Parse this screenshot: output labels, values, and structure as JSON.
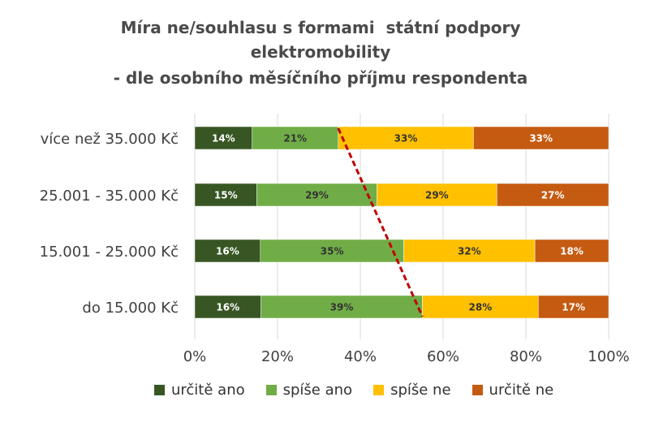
{
  "chart_data": {
    "type": "bar",
    "orientation": "horizontal",
    "stacked": true,
    "title_lines": [
      "Míra ne/souhlasu s formami  státní podpory",
      "elektromobility",
      "- dle osobního měsíčního příjmu respondenta"
    ],
    "categories": [
      "více než 35.000 Kč",
      "25.001 - 35.000 Kč",
      "15.001 - 25.000 Kč",
      "do 15.000 Kč"
    ],
    "series": [
      {
        "name": "určitě ano",
        "color": "#375623",
        "values": [
          14,
          15,
          16,
          16
        ]
      },
      {
        "name": "spíše ano",
        "color": "#70ad47",
        "values": [
          21,
          29,
          35,
          39
        ]
      },
      {
        "name": "spíše ne",
        "color": "#ffc000",
        "values": [
          33,
          29,
          32,
          28
        ]
      },
      {
        "name": "určitě ne",
        "color": "#c55a11",
        "values": [
          33,
          27,
          18,
          17
        ]
      }
    ],
    "xlim": [
      0,
      100
    ],
    "x_ticks": [
      "0%",
      "20%",
      "40%",
      "60%",
      "80%",
      "100%"
    ],
    "grid": true,
    "legend_position": "bottom",
    "trend_line": {
      "color": "#c00000",
      "style": "dashed"
    }
  }
}
